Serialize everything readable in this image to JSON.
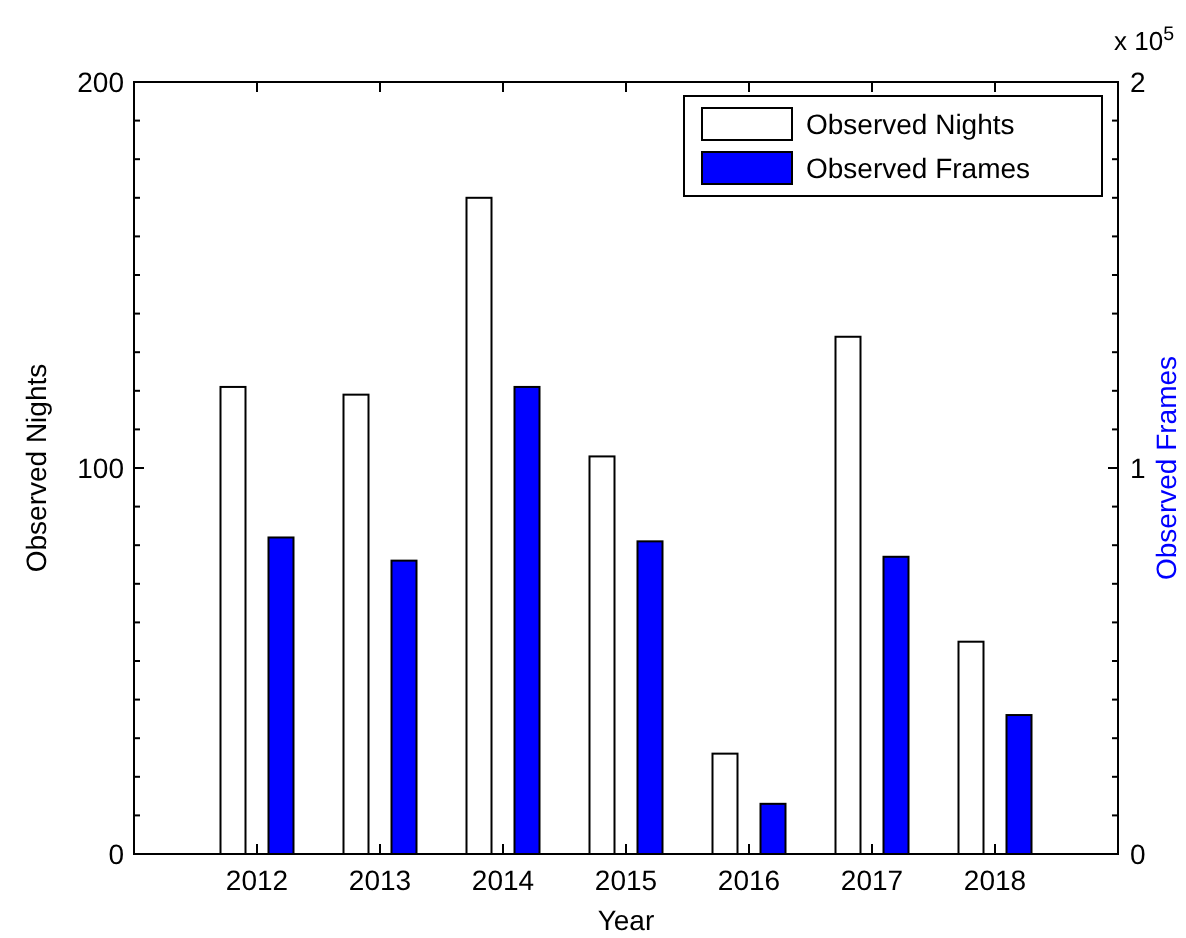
{
  "chart_data": {
    "type": "bar",
    "xlabel": "Year",
    "ylabel": "Observed Nights",
    "y2label": "Observed Frames",
    "categories": [
      "2012",
      "2013",
      "2014",
      "2015",
      "2016",
      "2017",
      "2018"
    ],
    "series": [
      {
        "name": "Observed Nights",
        "color": "#ffffff",
        "values": [
          121,
          119,
          170,
          103,
          26,
          134,
          55
        ]
      },
      {
        "name": "Observed Frames",
        "color": "#0000ff",
        "axis": "y2",
        "values": [
          0.82,
          0.76,
          1.21,
          0.81,
          0.13,
          0.77,
          0.36
        ]
      }
    ],
    "ylim": [
      0,
      200
    ],
    "yticks": [
      0,
      {
        "value": 10,
        "label": null
      },
      {
        "value": 20,
        "label": null
      },
      {
        "value": 30,
        "label": null
      },
      {
        "value": 40,
        "label": null
      },
      {
        "value": 50,
        "label": null
      },
      {
        "value": 60,
        "label": null
      },
      {
        "value": 70,
        "label": null
      },
      {
        "value": 80,
        "label": null
      },
      {
        "value": 90,
        "label": null
      },
      100,
      {
        "value": 110,
        "label": null
      },
      {
        "value": 120,
        "label": null
      },
      {
        "value": 130,
        "label": null
      },
      {
        "value": 140,
        "label": null
      },
      {
        "value": 150,
        "label": null
      },
      {
        "value": 160,
        "label": null
      },
      {
        "value": 170,
        "label": null
      },
      {
        "value": 180,
        "label": null
      },
      {
        "value": 190,
        "label": null
      },
      200
    ],
    "y2lim": [
      0,
      2
    ],
    "y2ticks": [
      0,
      {
        "value": 0.1,
        "label": null
      },
      {
        "value": 0.2,
        "label": null
      },
      {
        "value": 0.3,
        "label": null
      },
      {
        "value": 0.4,
        "label": null
      },
      {
        "value": 0.5,
        "label": null
      },
      {
        "value": 0.6,
        "label": null
      },
      {
        "value": 0.7,
        "label": null
      },
      {
        "value": 0.8,
        "label": null
      },
      {
        "value": 0.9,
        "label": null
      },
      1,
      {
        "value": 1.1,
        "label": null
      },
      {
        "value": 1.2,
        "label": null
      },
      {
        "value": 1.3,
        "label": null
      },
      {
        "value": 1.4,
        "label": null
      },
      {
        "value": 1.5,
        "label": null
      },
      {
        "value": 1.6,
        "label": null
      },
      {
        "value": 1.7,
        "label": null
      },
      {
        "value": 1.8,
        "label": null
      },
      {
        "value": 1.9,
        "label": null
      },
      2
    ],
    "annotations": [
      "x 10$^{5}$"
    ],
    "legend": "top right",
    "grid": false
  }
}
